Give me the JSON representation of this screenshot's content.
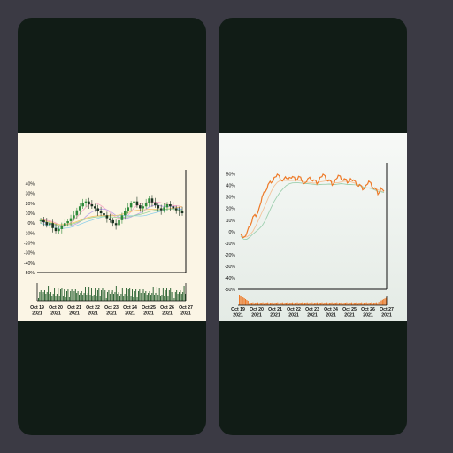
{
  "phones": [
    {
      "theme": {
        "bg": "#fbf5e5",
        "up": "#2f8a3a",
        "down": "#1a3320",
        "volume": "#1f5a27",
        "ma": [
          "#f7a3c3",
          "#b9a2e8",
          "#8fd0ea",
          "#f4c36a",
          "#9ad49a"
        ]
      },
      "chart_data": {
        "type": "candlestick",
        "y_ticks": [
          "40%",
          "30%",
          "20%",
          "10%",
          "0%",
          "-10%",
          "-20%",
          "-30%",
          "-40%",
          "-50%"
        ],
        "ylim": [
          -50,
          45
        ],
        "x_ticks": [
          [
            "Oct 19",
            "2021"
          ],
          [
            "Oct 20",
            "2021"
          ],
          [
            "Oct 21",
            "2021"
          ],
          [
            "Oct 22",
            "2021"
          ],
          [
            "Oct 23",
            "2021"
          ],
          [
            "Oct 24",
            "2021"
          ],
          [
            "Oct 25",
            "2021"
          ],
          [
            "Oct 26",
            "2021"
          ],
          [
            "Oct 27",
            "2021"
          ]
        ],
        "price_series": [
          3,
          1,
          -2,
          0,
          -5,
          -8,
          -6,
          -3,
          0,
          2,
          5,
          8,
          13,
          17,
          20,
          22,
          19,
          17,
          15,
          12,
          10,
          8,
          5,
          3,
          0,
          -2,
          3,
          8,
          12,
          16,
          20,
          22,
          18,
          15,
          17,
          20,
          25,
          21,
          18,
          15,
          13,
          16,
          19,
          17,
          15,
          13,
          12,
          10
        ]
      }
    },
    {
      "theme": {
        "bg": "#f2f6f2",
        "line": "#ee7a28",
        "volume": "#ee7a28",
        "ma": [
          "#f4c39a",
          "#9fd0b0"
        ]
      },
      "chart_data": {
        "type": "line",
        "y_ticks": [
          "50%",
          "40%",
          "30%",
          "20%",
          "10%",
          "0%",
          "-10%",
          "-20%",
          "-30%",
          "-40%",
          "-50%"
        ],
        "ylim": [
          -50,
          52
        ],
        "x_ticks": [
          [
            "Oct 19",
            "2021"
          ],
          [
            "Oct 20",
            "2021"
          ],
          [
            "Oct 21",
            "2021"
          ],
          [
            "Oct 22",
            "2021"
          ],
          [
            "Oct 23",
            "2021"
          ],
          [
            "Oct 24",
            "2021"
          ],
          [
            "Oct 25",
            "2021"
          ],
          [
            "Oct 26",
            "2021"
          ],
          [
            "Oct 27",
            "2021"
          ]
        ],
        "price_series": [
          0,
          -5,
          -3,
          5,
          12,
          15,
          20,
          28,
          35,
          40,
          44,
          47,
          48,
          46,
          44,
          48,
          47,
          46,
          45,
          47,
          46,
          42,
          44,
          46,
          44,
          43,
          47,
          48,
          46,
          44,
          42,
          45,
          47,
          46,
          45,
          44,
          46,
          43,
          41,
          40,
          38,
          40,
          42,
          40,
          37,
          34,
          38,
          35
        ]
      }
    }
  ]
}
